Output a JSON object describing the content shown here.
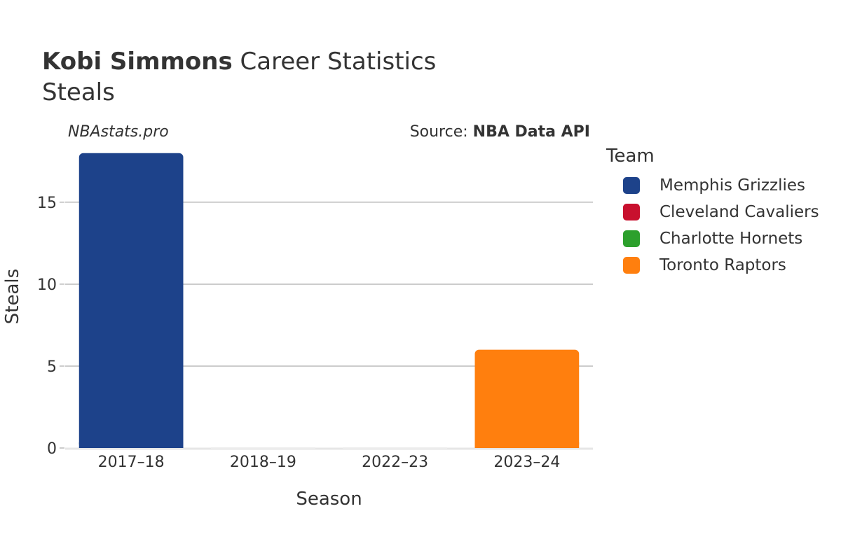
{
  "header": {
    "player_name": "Kobi Simmons",
    "title_rest": " Career Statistics",
    "subtitle": "Steals"
  },
  "watermark": "NBAstats.pro",
  "source": {
    "prefix": "Source: ",
    "name": "NBA Data API"
  },
  "legend": {
    "title": "Team",
    "items": [
      {
        "label": "Memphis Grizzlies",
        "color": "#1d428a"
      },
      {
        "label": "Cleveland Cavaliers",
        "color": "#c8102e"
      },
      {
        "label": "Charlotte Hornets",
        "color": "#2ca02c"
      },
      {
        "label": "Toronto Raptors",
        "color": "#ff7f0e"
      }
    ]
  },
  "chart_data": {
    "type": "bar",
    "categories": [
      "2017–18",
      "2018–19",
      "2022–23",
      "2023–24"
    ],
    "series": [
      {
        "name": "Memphis Grizzlies",
        "values": [
          18,
          null,
          null,
          null
        ],
        "color": "#1d428a"
      },
      {
        "name": "Cleveland Cavaliers",
        "values": [
          null,
          0,
          null,
          null
        ],
        "color": "#c8102e"
      },
      {
        "name": "Charlotte Hornets",
        "values": [
          null,
          null,
          0,
          null
        ],
        "color": "#2ca02c"
      },
      {
        "name": "Toronto Raptors",
        "values": [
          null,
          null,
          null,
          6
        ],
        "color": "#ff7f0e"
      }
    ],
    "xlabel": "Season",
    "ylabel": "Steals",
    "ylim": [
      0,
      18.5
    ],
    "yticks": [
      0,
      5,
      10,
      15
    ],
    "grid": true,
    "legend_position": "right"
  }
}
